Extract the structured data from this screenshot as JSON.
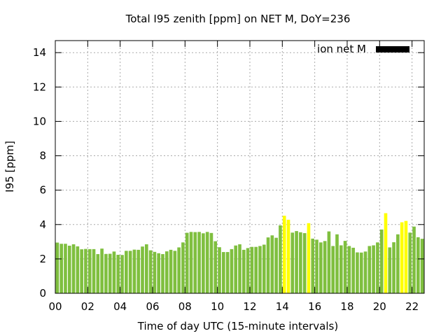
{
  "chart_data": {
    "type": "bar",
    "title": "Total I95 zenith [ppm] on NET M, DoY=236",
    "xlabel": "Time of day UTC (15-minute intervals)",
    "ylabel": "I95 [ppm]",
    "xlim": [
      0,
      22.75
    ],
    "ylim": [
      0,
      14.7
    ],
    "x_ticks": [
      0,
      2,
      4,
      6,
      8,
      10,
      12,
      14,
      16,
      18,
      20,
      22
    ],
    "x_tick_labels": [
      "00",
      "02",
      "04",
      "06",
      "08",
      "10",
      "12",
      "14",
      "16",
      "18",
      "20",
      "22"
    ],
    "y_ticks": [
      0,
      2,
      4,
      6,
      8,
      10,
      12,
      14
    ],
    "y_tick_labels": [
      "0",
      "2",
      "4",
      "6",
      "8",
      "10",
      "12",
      "14"
    ],
    "grid": true,
    "legend": {
      "position": "top-right",
      "entries": [
        {
          "label": "ion net M",
          "color": "#000000"
        }
      ]
    },
    "colors": {
      "normal": "#7fbf3f",
      "high": "#ffff00"
    },
    "interval_hours": 0.25,
    "values": [
      2.95,
      2.88,
      2.88,
      2.77,
      2.85,
      2.73,
      2.56,
      2.58,
      2.57,
      2.57,
      2.28,
      2.6,
      2.29,
      2.3,
      2.43,
      2.24,
      2.23,
      2.47,
      2.47,
      2.54,
      2.53,
      2.72,
      2.85,
      2.5,
      2.41,
      2.33,
      2.28,
      2.44,
      2.53,
      2.47,
      2.67,
      2.96,
      3.52,
      3.57,
      3.56,
      3.57,
      3.49,
      3.57,
      3.51,
      3.03,
      2.68,
      2.4,
      2.4,
      2.57,
      2.78,
      2.85,
      2.53,
      2.63,
      2.7,
      2.7,
      2.75,
      2.83,
      3.25,
      3.37,
      3.23,
      3.95,
      4.51,
      4.28,
      3.53,
      3.62,
      3.55,
      3.5,
      4.08,
      3.18,
      3.12,
      2.96,
      3.04,
      3.6,
      2.75,
      3.43,
      2.79,
      3.05,
      2.75,
      2.65,
      2.38,
      2.37,
      2.43,
      2.75,
      2.79,
      2.96,
      3.71,
      4.66,
      2.67,
      2.97,
      3.43,
      4.13,
      4.21,
      3.53,
      3.88,
      3.26,
      3.17
    ],
    "high_flags": [
      0,
      0,
      0,
      0,
      0,
      0,
      0,
      0,
      0,
      0,
      0,
      0,
      0,
      0,
      0,
      0,
      0,
      0,
      0,
      0,
      0,
      0,
      0,
      0,
      0,
      0,
      0,
      0,
      0,
      0,
      0,
      0,
      0,
      0,
      0,
      0,
      0,
      0,
      0,
      0,
      0,
      0,
      0,
      0,
      0,
      0,
      0,
      0,
      0,
      0,
      0,
      0,
      0,
      0,
      0,
      0,
      1,
      1,
      0,
      0,
      0,
      0,
      1,
      0,
      0,
      0,
      0,
      0,
      0,
      0,
      0,
      0,
      0,
      0,
      0,
      0,
      0,
      0,
      0,
      0,
      0,
      1,
      0,
      0,
      0,
      1,
      1,
      0,
      0,
      0,
      0
    ]
  }
}
